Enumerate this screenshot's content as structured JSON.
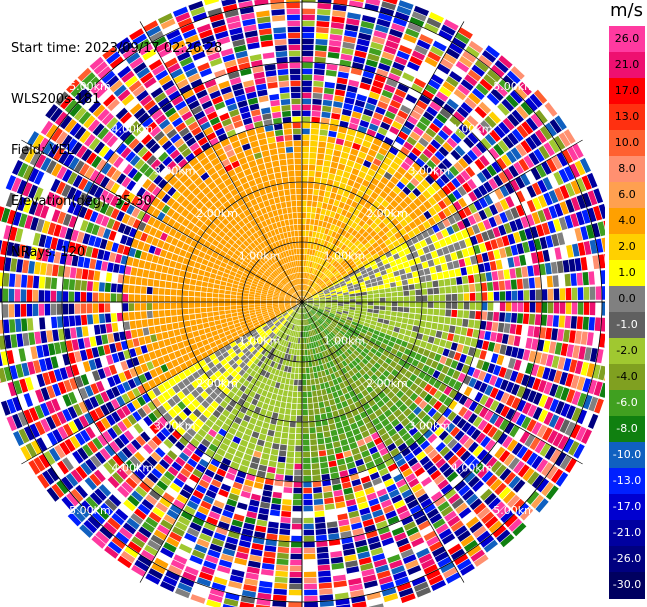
{
  "info": {
    "start_time": "Start time: 2023/09/17 02:26:28",
    "instrument": "WLS200s-181",
    "field": "Field: VEL",
    "elevation": "Elevation(deg): 35.30",
    "nrays": "NRays: 120"
  },
  "colorbar": {
    "unit": "m/s",
    "ticks": [
      "26.0",
      "21.0",
      "17.0",
      "13.0",
      "10.0",
      "8.0",
      "6.0",
      "4.0",
      "2.0",
      "1.0",
      "0.0",
      "-1.0",
      "-2.0",
      "-4.0",
      "-6.0",
      "-8.0",
      "-10.0",
      "-13.0",
      "-17.0",
      "-21.0",
      "-26.0",
      "-30.0"
    ],
    "colors": [
      "#ff3aa0",
      "#ee1070",
      "#ff0000",
      "#ff3010",
      "#ff6030",
      "#ff9070",
      "#ffa050",
      "#ffa000",
      "#ffd000",
      "#ffff00",
      "#808080",
      "#606060",
      "#a0c830",
      "#80a020",
      "#40a020",
      "#108010",
      "#1060c0",
      "#0020ff",
      "#0000d0",
      "#0000a0",
      "#000080",
      "#000060"
    ],
    "text_colors": [
      "#000",
      "#000",
      "#000",
      "#000",
      "#000",
      "#000",
      "#000",
      "#000",
      "#000",
      "#000",
      "#000",
      "#fff",
      "#000",
      "#000",
      "#fff",
      "#fff",
      "#fff",
      "#fff",
      "#fff",
      "#fff",
      "#fff",
      "#fff"
    ]
  },
  "chart_data": {
    "type": "ppi",
    "field": "VEL",
    "units": "m/s",
    "nrays": 120,
    "range_rings_km": [
      1.0,
      2.0,
      3.0,
      4.0,
      5.0
    ],
    "ring_labels": [
      "1.00km",
      "2.00km",
      "3.00km",
      "4.00km",
      "5.00km"
    ],
    "color_range": [
      -30,
      26
    ],
    "sectors": [
      {
        "azimuth_from_deg": 300,
        "azimuth_to_deg": 360,
        "range_to_km": 3.0,
        "velocity": 3.0
      },
      {
        "azimuth_from_deg": 240,
        "azimuth_to_deg": 300,
        "range_to_km": 3.0,
        "velocity": 3.0
      },
      {
        "azimuth_from_deg": 0,
        "azimuth_to_deg": 60,
        "range_to_km": 3.0,
        "velocity": 2.0
      },
      {
        "azimuth_from_deg": 40,
        "azimuth_to_deg": 80,
        "range_to_km": 3.0,
        "velocity": 0.0
      },
      {
        "azimuth_from_deg": 80,
        "azimuth_to_deg": 110,
        "range_to_km": 3.0,
        "velocity": -2.5
      },
      {
        "azimuth_from_deg": 110,
        "azimuth_to_deg": 180,
        "range_to_km": 3.0,
        "velocity": -6.0
      },
      {
        "azimuth_from_deg": 180,
        "azimuth_to_deg": 220,
        "range_to_km": 3.0,
        "velocity": -2.5
      },
      {
        "azimuth_from_deg": 220,
        "azimuth_to_deg": 250,
        "range_to_km": 3.0,
        "velocity": 0.0
      }
    ],
    "noise_beyond_km": 3.0,
    "max_range_km": 5.2
  }
}
